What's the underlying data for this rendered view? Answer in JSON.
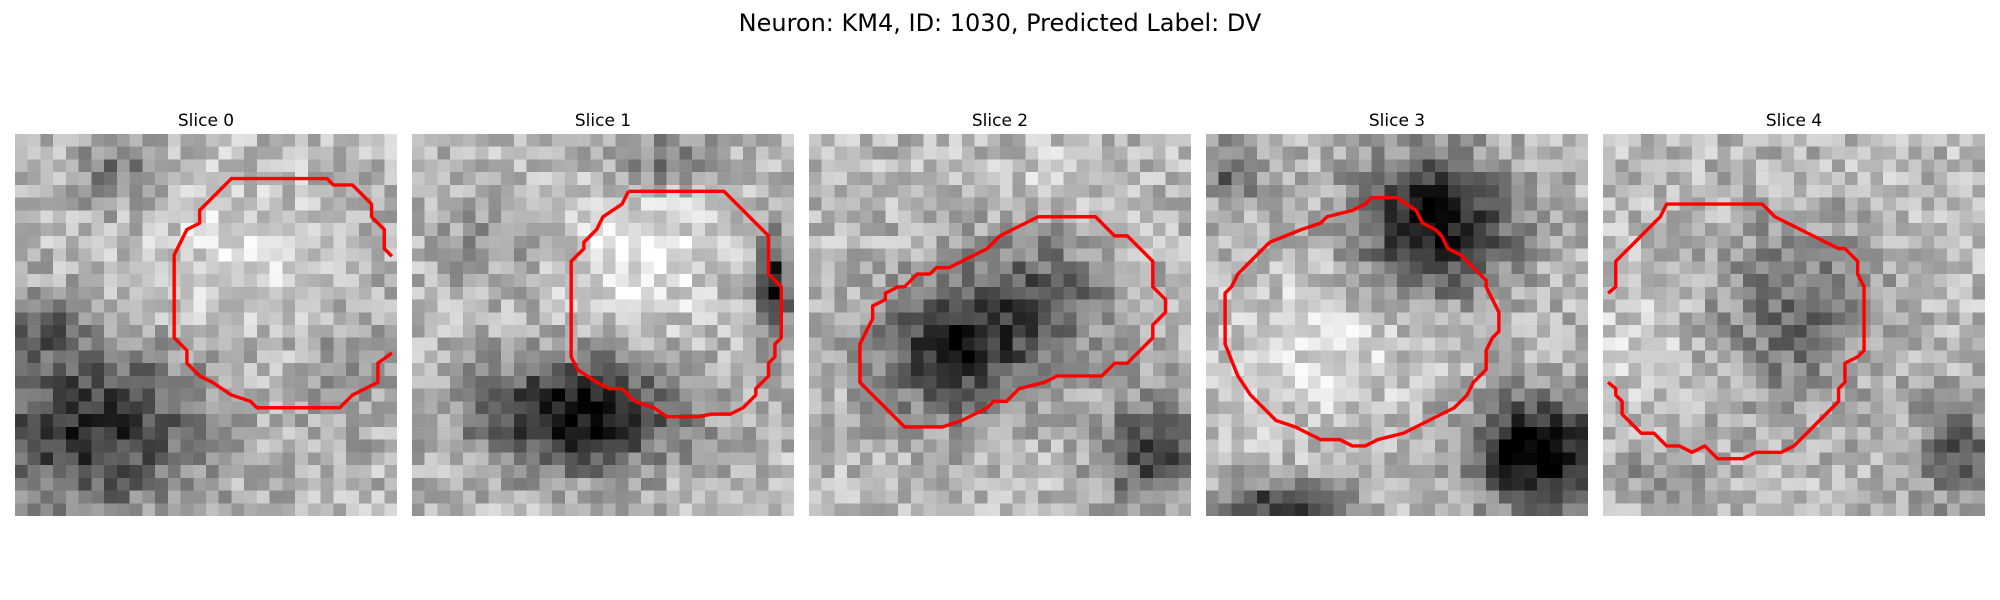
{
  "figure": {
    "title": "Neuron: KM4, ID: 1030, Predicted Label: DV"
  },
  "outline_color": "#ff0000",
  "slices": [
    {
      "title": "Slice 0"
    },
    {
      "title": "Slice 1"
    },
    {
      "title": "Slice 2"
    },
    {
      "title": "Slice 3"
    },
    {
      "title": "Slice 4"
    }
  ]
}
